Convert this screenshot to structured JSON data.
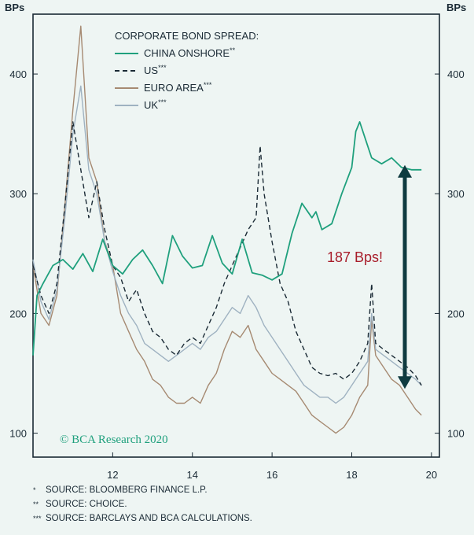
{
  "chart_data": {
    "type": "line",
    "unit_left": "BPs",
    "unit_right": "BPs",
    "legend_title": "CORPORATE BOND SPREAD:",
    "legend_position": "top-left",
    "xlim": [
      2010.0,
      2020.2
    ],
    "ylim": [
      80,
      450
    ],
    "x_ticks": [
      12,
      14,
      16,
      18,
      20
    ],
    "x_tick_positions": [
      2012,
      2014,
      2016,
      2018,
      2020
    ],
    "y_ticks": [
      100,
      200,
      300,
      400
    ],
    "grid": false,
    "annotation": "187 Bps!",
    "arrow_range": [
      137,
      324
    ],
    "credit": "© BCA Research 2020",
    "series": [
      {
        "name": "CHINA ONSHORE",
        "mark": "**",
        "color": "#1fa07d",
        "style": "solid",
        "x": [
          2010.0,
          2010.1,
          2010.25,
          2010.5,
          2010.75,
          2011.0,
          2011.25,
          2011.5,
          2011.75,
          2012.0,
          2012.25,
          2012.5,
          2012.75,
          2013.0,
          2013.25,
          2013.5,
          2013.75,
          2014.0,
          2014.25,
          2014.5,
          2014.75,
          2015.0,
          2015.25,
          2015.5,
          2015.75,
          2016.0,
          2016.25,
          2016.5,
          2016.75,
          2017.0,
          2017.1,
          2017.25,
          2017.5,
          2017.75,
          2018.0,
          2018.1,
          2018.2,
          2018.35,
          2018.5,
          2018.75,
          2019.0,
          2019.25,
          2019.5,
          2019.75
        ],
        "y": [
          165,
          215,
          225,
          240,
          245,
          237,
          250,
          235,
          262,
          240,
          233,
          245,
          253,
          240,
          225,
          265,
          248,
          238,
          240,
          265,
          242,
          233,
          262,
          234,
          232,
          228,
          233,
          267,
          292,
          280,
          285,
          270,
          275,
          300,
          322,
          352,
          360,
          345,
          330,
          325,
          330,
          322,
          320,
          320
        ]
      },
      {
        "name": "US",
        "mark": "***",
        "color": "#1a2a35",
        "style": "dashed",
        "x": [
          2010.0,
          2010.2,
          2010.4,
          2010.6,
          2010.8,
          2011.0,
          2011.2,
          2011.4,
          2011.6,
          2011.8,
          2012.0,
          2012.2,
          2012.4,
          2012.6,
          2012.8,
          2013.0,
          2013.2,
          2013.4,
          2013.6,
          2013.8,
          2014.0,
          2014.2,
          2014.4,
          2014.6,
          2014.8,
          2015.0,
          2015.2,
          2015.4,
          2015.6,
          2015.7,
          2015.8,
          2016.0,
          2016.2,
          2016.4,
          2016.6,
          2016.8,
          2017.0,
          2017.2,
          2017.4,
          2017.6,
          2017.8,
          2018.0,
          2018.2,
          2018.4,
          2018.5,
          2018.6,
          2018.8,
          2019.0,
          2019.2,
          2019.4,
          2019.6,
          2019.75
        ],
        "y": [
          240,
          215,
          200,
          225,
          290,
          360,
          320,
          280,
          310,
          270,
          240,
          230,
          210,
          220,
          200,
          185,
          180,
          170,
          165,
          175,
          180,
          175,
          190,
          205,
          225,
          240,
          255,
          270,
          280,
          340,
          300,
          260,
          225,
          210,
          185,
          170,
          155,
          150,
          148,
          150,
          145,
          150,
          160,
          175,
          225,
          175,
          170,
          165,
          160,
          155,
          148,
          140
        ]
      },
      {
        "name": "EURO AREA",
        "mark": "***",
        "color": "#a68a72",
        "style": "solid",
        "x": [
          2010.0,
          2010.2,
          2010.4,
          2010.6,
          2010.8,
          2011.0,
          2011.2,
          2011.4,
          2011.6,
          2011.8,
          2012.0,
          2012.2,
          2012.4,
          2012.6,
          2012.8,
          2013.0,
          2013.2,
          2013.4,
          2013.6,
          2013.8,
          2014.0,
          2014.2,
          2014.4,
          2014.6,
          2014.8,
          2015.0,
          2015.2,
          2015.4,
          2015.6,
          2015.8,
          2016.0,
          2016.2,
          2016.4,
          2016.6,
          2016.8,
          2017.0,
          2017.2,
          2017.4,
          2017.6,
          2017.8,
          2018.0,
          2018.2,
          2018.4,
          2018.5,
          2018.6,
          2018.8,
          2019.0,
          2019.2,
          2019.4,
          2019.6,
          2019.75
        ],
        "y": [
          240,
          200,
          190,
          215,
          290,
          370,
          440,
          330,
          310,
          260,
          240,
          200,
          185,
          170,
          160,
          145,
          140,
          130,
          125,
          125,
          130,
          125,
          140,
          150,
          170,
          185,
          180,
          190,
          170,
          160,
          150,
          145,
          140,
          135,
          125,
          115,
          110,
          105,
          100,
          105,
          115,
          130,
          140,
          195,
          165,
          155,
          145,
          140,
          130,
          120,
          115
        ]
      },
      {
        "name": "UK",
        "mark": "***",
        "color": "#9fb2c1",
        "style": "solid",
        "x": [
          2010.0,
          2010.2,
          2010.4,
          2010.6,
          2010.8,
          2011.0,
          2011.2,
          2011.4,
          2011.6,
          2011.8,
          2012.0,
          2012.2,
          2012.4,
          2012.6,
          2012.8,
          2013.0,
          2013.2,
          2013.4,
          2013.6,
          2013.8,
          2014.0,
          2014.2,
          2014.4,
          2014.6,
          2014.8,
          2015.0,
          2015.2,
          2015.4,
          2015.6,
          2015.8,
          2016.0,
          2016.2,
          2016.4,
          2016.6,
          2016.8,
          2017.0,
          2017.2,
          2017.4,
          2017.6,
          2017.8,
          2018.0,
          2018.2,
          2018.4,
          2018.5,
          2018.6,
          2018.8,
          2019.0,
          2019.2,
          2019.4,
          2019.6,
          2019.75
        ],
        "y": [
          245,
          210,
          195,
          220,
          280,
          350,
          390,
          320,
          300,
          260,
          235,
          215,
          200,
          190,
          175,
          170,
          165,
          160,
          165,
          170,
          175,
          170,
          180,
          185,
          195,
          205,
          200,
          215,
          205,
          190,
          180,
          170,
          160,
          150,
          140,
          135,
          130,
          130,
          125,
          130,
          140,
          150,
          160,
          200,
          170,
          165,
          160,
          155,
          150,
          145,
          140
        ]
      }
    ]
  },
  "footnotes": [
    {
      "mark": "*",
      "text": "SOURCE: BLOOMBERG FINANCE L.P."
    },
    {
      "mark": "**",
      "text": "SOURCE: CHOICE."
    },
    {
      "mark": "***",
      "text": "SOURCE: BARCLAYS AND BCA CALCULATIONS."
    }
  ]
}
